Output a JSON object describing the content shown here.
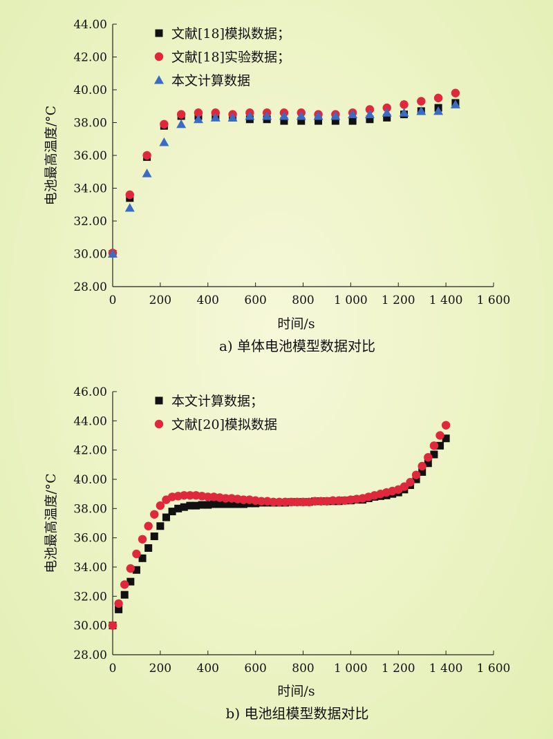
{
  "chart_data": [
    {
      "type": "scatter",
      "caption": "a) 单体电池模型数据对比",
      "xlabel": "时间/s",
      "ylabel": "电池最高温度/°C",
      "xlim": [
        0,
        1600
      ],
      "ylim": [
        28,
        44
      ],
      "x_ticks": [
        "0",
        "200",
        "400",
        "600",
        "800",
        "1 000",
        "1 200",
        "1 400",
        "1 600"
      ],
      "y_ticks": [
        "28.00",
        "30.00",
        "32.00",
        "34.00",
        "36.00",
        "38.00",
        "40.00",
        "42.00",
        "44.00"
      ],
      "legend_position": "top-left",
      "series": [
        {
          "name": "文献[18]模拟数据；",
          "marker": "square",
          "color": "#111111",
          "x": [
            0,
            72,
            144,
            216,
            288,
            360,
            432,
            504,
            576,
            648,
            720,
            792,
            864,
            936,
            1008,
            1080,
            1152,
            1224,
            1296,
            1368,
            1440
          ],
          "y": [
            30.0,
            33.4,
            35.9,
            37.8,
            38.4,
            38.4,
            38.4,
            38.3,
            38.2,
            38.2,
            38.1,
            38.1,
            38.1,
            38.1,
            38.1,
            38.2,
            38.3,
            38.5,
            38.7,
            38.9,
            39.2
          ]
        },
        {
          "name": "文献[18]实验数据；",
          "marker": "circle",
          "color": "#e0283c",
          "x": [
            0,
            72,
            144,
            216,
            288,
            360,
            432,
            504,
            576,
            648,
            720,
            792,
            864,
            936,
            1008,
            1080,
            1152,
            1224,
            1296,
            1368,
            1440
          ],
          "y": [
            30.05,
            33.6,
            36.0,
            37.9,
            38.5,
            38.6,
            38.6,
            38.5,
            38.6,
            38.6,
            38.6,
            38.6,
            38.5,
            38.5,
            38.6,
            38.8,
            38.9,
            39.1,
            39.3,
            39.5,
            39.8
          ]
        },
        {
          "name": "本文计算数据",
          "marker": "triangle",
          "color": "#3a6cc4",
          "x": [
            0,
            72,
            144,
            216,
            288,
            360,
            432,
            504,
            576,
            648,
            720,
            792,
            864,
            936,
            1008,
            1080,
            1152,
            1224,
            1296,
            1368,
            1440
          ],
          "y": [
            30.0,
            32.8,
            34.9,
            36.8,
            37.9,
            38.2,
            38.3,
            38.3,
            38.4,
            38.4,
            38.4,
            38.4,
            38.4,
            38.4,
            38.5,
            38.5,
            38.6,
            38.6,
            38.7,
            38.7,
            39.1
          ]
        }
      ]
    },
    {
      "type": "scatter",
      "caption": "b) 电池组模型数据对比",
      "xlabel": "时间/s",
      "ylabel": "电池最高温度/°C",
      "xlim": [
        0,
        1600
      ],
      "ylim": [
        28,
        46
      ],
      "x_ticks": [
        "0",
        "200",
        "400",
        "600",
        "800",
        "1 000",
        "1 200",
        "1 400",
        "1 600"
      ],
      "y_ticks": [
        "28.00",
        "30.00",
        "32.00",
        "34.00",
        "36.00",
        "38.00",
        "40.00",
        "42.00",
        "44.00",
        "46.00"
      ],
      "legend_position": "top-left",
      "series": [
        {
          "name": "本文计算数据；",
          "marker": "square",
          "color": "#111111",
          "x": [
            0,
            25,
            50,
            75,
            100,
            125,
            150,
            175,
            200,
            225,
            250,
            275,
            300,
            325,
            350,
            375,
            400,
            425,
            450,
            475,
            500,
            525,
            550,
            575,
            600,
            625,
            650,
            675,
            700,
            725,
            750,
            775,
            800,
            825,
            850,
            875,
            900,
            925,
            950,
            975,
            1000,
            1025,
            1050,
            1075,
            1100,
            1125,
            1150,
            1175,
            1200,
            1225,
            1250,
            1275,
            1300,
            1325,
            1350,
            1375,
            1400
          ],
          "y": [
            30.0,
            31.1,
            32.1,
            33.0,
            33.8,
            34.6,
            35.3,
            36.1,
            36.8,
            37.4,
            37.8,
            38.0,
            38.1,
            38.2,
            38.2,
            38.25,
            38.25,
            38.3,
            38.3,
            38.3,
            38.3,
            38.3,
            38.3,
            38.35,
            38.35,
            38.4,
            38.4,
            38.4,
            38.4,
            38.4,
            38.45,
            38.45,
            38.45,
            38.45,
            38.5,
            38.5,
            38.5,
            38.5,
            38.5,
            38.55,
            38.55,
            38.6,
            38.6,
            38.7,
            38.8,
            38.85,
            38.9,
            39.0,
            39.1,
            39.3,
            39.6,
            40.0,
            40.5,
            41.1,
            41.7,
            42.3,
            42.8
          ]
        },
        {
          "name": "文献[20]模拟数据",
          "marker": "circle",
          "color": "#e0283c",
          "x": [
            0,
            25,
            50,
            75,
            100,
            125,
            150,
            175,
            200,
            225,
            250,
            275,
            300,
            325,
            350,
            375,
            400,
            425,
            450,
            475,
            500,
            525,
            550,
            575,
            600,
            625,
            650,
            675,
            700,
            725,
            750,
            775,
            800,
            825,
            850,
            875,
            900,
            925,
            950,
            975,
            1000,
            1025,
            1050,
            1075,
            1100,
            1125,
            1150,
            1175,
            1200,
            1225,
            1250,
            1275,
            1300,
            1325,
            1350,
            1375,
            1400
          ],
          "y": [
            30.0,
            31.5,
            32.8,
            33.9,
            34.9,
            35.9,
            36.8,
            37.6,
            38.2,
            38.6,
            38.8,
            38.85,
            38.9,
            38.9,
            38.9,
            38.85,
            38.8,
            38.8,
            38.75,
            38.7,
            38.7,
            38.65,
            38.6,
            38.6,
            38.55,
            38.5,
            38.5,
            38.45,
            38.45,
            38.45,
            38.45,
            38.45,
            38.45,
            38.45,
            38.5,
            38.5,
            38.5,
            38.55,
            38.55,
            38.55,
            38.6,
            38.65,
            38.7,
            38.8,
            38.9,
            39.0,
            39.1,
            39.2,
            39.3,
            39.5,
            39.8,
            40.3,
            40.9,
            41.5,
            42.3,
            43.0,
            43.7
          ]
        }
      ]
    }
  ]
}
